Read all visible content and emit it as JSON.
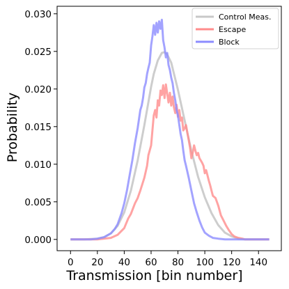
{
  "chart_data": {
    "type": "line",
    "title": "",
    "xlabel": "Transmission [bin number]",
    "ylabel": "Probability",
    "xlim": [
      -10,
      157
    ],
    "ylim": [
      -0.0015,
      0.031
    ],
    "x_ticks": [
      0,
      20,
      40,
      60,
      80,
      100,
      120,
      140
    ],
    "x_tick_labels": [
      "0",
      "20",
      "40",
      "60",
      "80",
      "100",
      "120",
      "140"
    ],
    "y_ticks": [
      0.0,
      0.005,
      0.01,
      0.015,
      0.02,
      0.025,
      0.03
    ],
    "y_tick_labels": [
      "0.000",
      "0.005",
      "0.010",
      "0.015",
      "0.020",
      "0.025",
      "0.030"
    ],
    "grid": false,
    "legend_position": "top-right",
    "series": [
      {
        "name": "Control Meas.",
        "color": "#c8c8c8",
        "x": [
          0,
          10,
          20,
          25,
          30,
          35,
          40,
          45,
          50,
          55,
          60,
          62,
          65,
          68,
          70,
          72,
          75,
          80,
          85,
          90,
          95,
          100,
          105,
          110,
          115,
          120,
          125,
          130,
          135,
          140,
          148
        ],
        "y": [
          0.0,
          0.0,
          0.0001,
          0.0003,
          0.0008,
          0.0018,
          0.0036,
          0.0065,
          0.0105,
          0.0152,
          0.0203,
          0.022,
          0.0238,
          0.0248,
          0.0249,
          0.0246,
          0.0235,
          0.0199,
          0.0158,
          0.0118,
          0.0083,
          0.0056,
          0.0035,
          0.0019,
          0.0009,
          0.0004,
          0.0001,
          0.0,
          0.0,
          0.0,
          0.0
        ]
      },
      {
        "name": "Escape",
        "color": "#ff8c8c",
        "x": [
          0,
          20,
          30,
          35,
          40,
          43,
          45,
          48,
          50,
          52,
          55,
          57,
          58,
          60,
          61,
          62,
          63,
          64,
          65,
          66,
          67,
          68,
          69,
          70,
          71,
          72,
          73,
          74,
          75,
          76,
          77,
          78,
          79,
          80,
          81,
          82,
          83,
          84,
          85,
          86,
          87,
          88,
          89,
          90,
          91,
          92,
          93,
          94,
          95,
          96,
          97,
          98,
          99,
          100,
          101,
          102,
          103,
          104,
          105,
          106,
          108,
          110,
          112,
          114,
          116,
          118,
          120,
          122,
          125,
          128,
          130,
          135,
          140,
          148
        ],
        "y": [
          0.0,
          0.0,
          0.0002,
          0.0006,
          0.0015,
          0.0028,
          0.0034,
          0.0048,
          0.0055,
          0.0065,
          0.0082,
          0.0098,
          0.0112,
          0.0125,
          0.0145,
          0.0165,
          0.0172,
          0.0162,
          0.0185,
          0.0178,
          0.0198,
          0.0192,
          0.0205,
          0.0188,
          0.0206,
          0.0194,
          0.0182,
          0.0195,
          0.0178,
          0.019,
          0.0176,
          0.0168,
          0.0179,
          0.0163,
          0.0172,
          0.0158,
          0.0162,
          0.0145,
          0.0148,
          0.0152,
          0.0142,
          0.0132,
          0.0122,
          0.0108,
          0.0115,
          0.0125,
          0.0118,
          0.0112,
          0.0115,
          0.0108,
          0.0105,
          0.0102,
          0.0098,
          0.0088,
          0.0092,
          0.0085,
          0.0078,
          0.0072,
          0.0065,
          0.0058,
          0.0055,
          0.0045,
          0.0032,
          0.0025,
          0.0018,
          0.0012,
          0.0007,
          0.0004,
          0.0002,
          0.0001,
          0.0,
          0.0,
          0.0,
          0.0
        ]
      },
      {
        "name": "Block",
        "color": "#8c8cff",
        "x": [
          0,
          15,
          20,
          25,
          30,
          33,
          35,
          38,
          40,
          42,
          44,
          46,
          48,
          50,
          51,
          52,
          53,
          54,
          55,
          56,
          57,
          58,
          59,
          60,
          61,
          62,
          63,
          64,
          65,
          66,
          67,
          68,
          69,
          70,
          71,
          72,
          73,
          74,
          75,
          76,
          77,
          78,
          79,
          80,
          81,
          82,
          83,
          84,
          85,
          86,
          88,
          90,
          92,
          94,
          96,
          98,
          100,
          103,
          106,
          110,
          115,
          120,
          130,
          140,
          148
        ],
        "y": [
          0.0,
          0.0,
          0.0001,
          0.0003,
          0.0008,
          0.0014,
          0.002,
          0.0035,
          0.0048,
          0.0065,
          0.0085,
          0.0105,
          0.0128,
          0.0148,
          0.016,
          0.0172,
          0.0178,
          0.0188,
          0.0202,
          0.0208,
          0.022,
          0.0228,
          0.0235,
          0.0258,
          0.027,
          0.0285,
          0.0272,
          0.0288,
          0.0275,
          0.029,
          0.028,
          0.0292,
          0.0265,
          0.0255,
          0.0242,
          0.0248,
          0.0232,
          0.0225,
          0.0215,
          0.0208,
          0.0195,
          0.0185,
          0.0172,
          0.0165,
          0.0152,
          0.014,
          0.0132,
          0.0118,
          0.0105,
          0.0098,
          0.0082,
          0.0065,
          0.0048,
          0.0036,
          0.0025,
          0.0016,
          0.0009,
          0.0005,
          0.0002,
          0.0001,
          0.0,
          0.0,
          0.0,
          0.0,
          0.0
        ]
      }
    ]
  }
}
